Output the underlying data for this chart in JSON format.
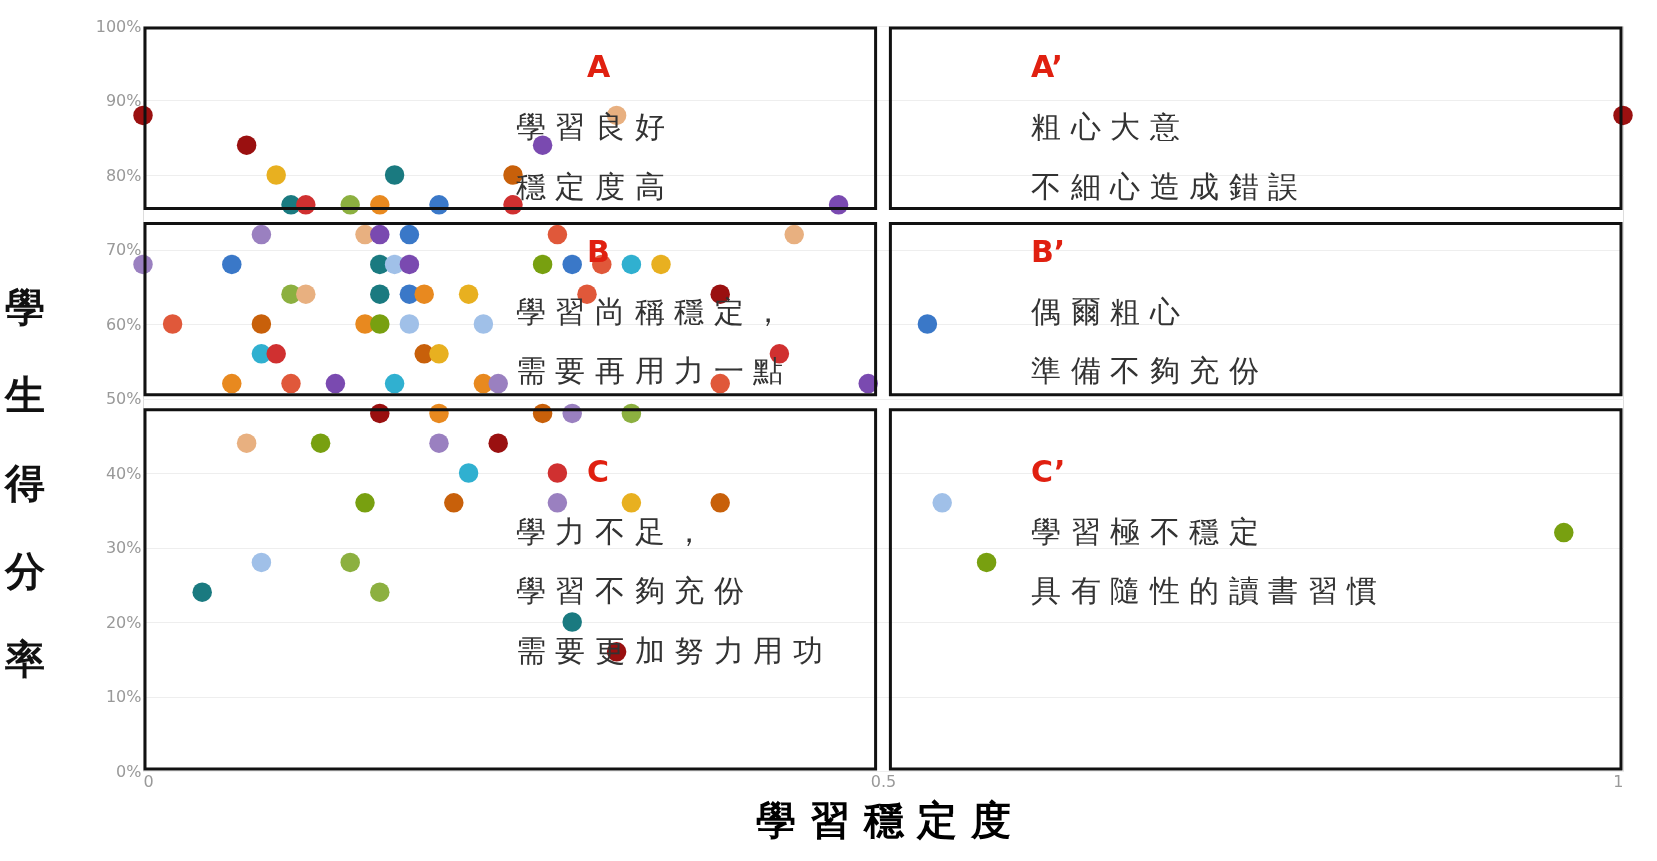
{
  "chart_data": {
    "type": "scatter",
    "xlabel": "學 習 穩 定 度",
    "ylabel": "學生得分率",
    "xlim": [
      0,
      1
    ],
    "xticks": [
      0,
      0.5,
      1
    ],
    "ylim": [
      0,
      100
    ],
    "yticks": [
      {
        "value": 0,
        "label": "0%"
      },
      {
        "value": 10,
        "label": "10%"
      },
      {
        "value": 20,
        "label": "20%"
      },
      {
        "value": 30,
        "label": "30%"
      },
      {
        "value": 40,
        "label": "40%"
      },
      {
        "value": 50,
        "label": "50%"
      },
      {
        "value": 60,
        "label": "60%"
      },
      {
        "value": 70,
        "label": "70%"
      },
      {
        "value": 80,
        "label": "80%"
      },
      {
        "value": 90,
        "label": "90%"
      },
      {
        "value": 100,
        "label": "100%"
      }
    ],
    "grid": "y",
    "marker": "circle",
    "series": [
      {
        "x": [
          0.0,
          0.32,
          1.0,
          0.07,
          0.27,
          0.09,
          0.17,
          0.25,
          0.1,
          0.11,
          0.14,
          0.16,
          0.2,
          0.25,
          0.47,
          0.08,
          0.15,
          0.16,
          0.18,
          0.28,
          0.44,
          0.0,
          0.06,
          0.16,
          0.17,
          0.18,
          0.27,
          0.29,
          0.31,
          0.33,
          0.35,
          0.1,
          0.11,
          0.16,
          0.18,
          0.19,
          0.22,
          0.3,
          0.39,
          0.02,
          0.08,
          0.15,
          0.16,
          0.18,
          0.23,
          0.53,
          0.08,
          0.09,
          0.19,
          0.2,
          0.43,
          0.06,
          0.1,
          0.13,
          0.17,
          0.23,
          0.24,
          0.39,
          0.49,
          0.16,
          0.2,
          0.27,
          0.29,
          0.33,
          0.07,
          0.12,
          0.2,
          0.24,
          0.22,
          0.28,
          0.15,
          0.21,
          0.28,
          0.33,
          0.39,
          0.54,
          0.96,
          0.08,
          0.14,
          0.57,
          0.04,
          0.16,
          0.29,
          0.32
        ],
        "values": [
          88,
          88,
          88,
          84,
          84,
          80,
          80,
          80,
          76,
          76,
          76,
          76,
          76,
          76,
          76,
          72,
          72,
          72,
          72,
          72,
          72,
          68,
          68,
          68,
          68,
          68,
          68,
          68,
          68,
          68,
          68,
          64,
          64,
          64,
          64,
          64,
          64,
          64,
          64,
          60,
          60,
          60,
          60,
          60,
          60,
          60,
          56,
          56,
          56,
          56,
          56,
          52,
          52,
          52,
          52,
          52,
          52,
          52,
          52,
          48,
          48,
          48,
          48,
          48,
          44,
          44,
          44,
          44,
          40,
          40,
          36,
          36,
          36,
          36,
          36,
          36,
          32,
          28,
          28,
          28,
          24,
          24,
          20,
          16
        ],
        "colors": [
          "#9a1010",
          "#e8b080",
          "#9a1010",
          "#9a1010",
          "#7a4ab0",
          "#e8b020",
          "#1a7a80",
          "#c8600a",
          "#1a7a80",
          "#d03030",
          "#8cb040",
          "#e8891f",
          "#3a78c8",
          "#d03030",
          "#7a4ab0",
          "#9a80c0",
          "#e8b080",
          "#7a4ab0",
          "#3a78c8",
          "#e0583a",
          "#e8b080",
          "#9a80c0",
          "#3a78c8",
          "#1a7a80",
          "#a0c0e8",
          "#7a4ab0",
          "#78a010",
          "#3a78c8",
          "#e0583a",
          "#30b0d0",
          "#e8b020",
          "#8cb040",
          "#e8b080",
          "#1a7a80",
          "#3a78c8",
          "#e8891f",
          "#e8b020",
          "#e0583a",
          "#9a1010",
          "#e0583a",
          "#c8600a",
          "#e8891f",
          "#78a010",
          "#a0c0e8",
          "#a0c0e8",
          "#3a78c8",
          "#30b0d0",
          "#d03030",
          "#c8600a",
          "#e8b020",
          "#d03030",
          "#e8891f",
          "#e0583a",
          "#7a4ab0",
          "#30b0d0",
          "#e8891f",
          "#9a80c0",
          "#e0583a",
          "#7a4ab0",
          "#9a1010",
          "#e8891f",
          "#c8600a",
          "#9a80c0",
          "#8cb040",
          "#e8b080",
          "#78a010",
          "#9a80c0",
          "#9a1010",
          "#30b0d0",
          "#d03030",
          "#78a010",
          "#c8600a",
          "#9a80c0",
          "#e8b020",
          "#c8600a",
          "#a0c0e8",
          "#78a010",
          "#a0c0e8",
          "#8cb040",
          "#78a010",
          "#1a7a80",
          "#8cb040",
          "#1a7a80",
          "#9a1010"
        ]
      }
    ],
    "annotations": [
      "A",
      "學 習 良 好",
      "穩 定 度 高",
      "B",
      "學 習 尚 稱 穩 定 ，",
      "需 要 再 用 力 一 點",
      "C",
      "學 力 不 足 ，",
      "學 習 不 夠 充 份",
      "需 要 更 加 努 力 用 功",
      "A’",
      "粗 心 大 意",
      "不 細 心 造 成 錯 誤",
      "B’",
      "偶 爾 粗 心",
      "準 備 不 夠 充 份",
      "C’",
      "學 習 極 不 穩 定",
      "具 有 隨 性 的 讀 書 習 慣"
    ]
  }
}
